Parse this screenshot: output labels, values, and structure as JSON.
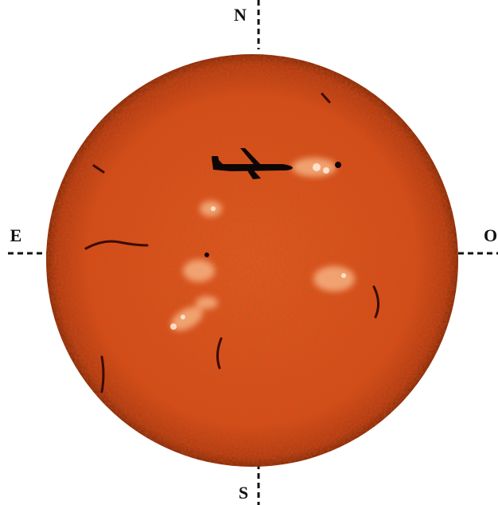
{
  "labels": {
    "north": "N",
    "east": "E",
    "west": "O",
    "south": "S"
  }
}
